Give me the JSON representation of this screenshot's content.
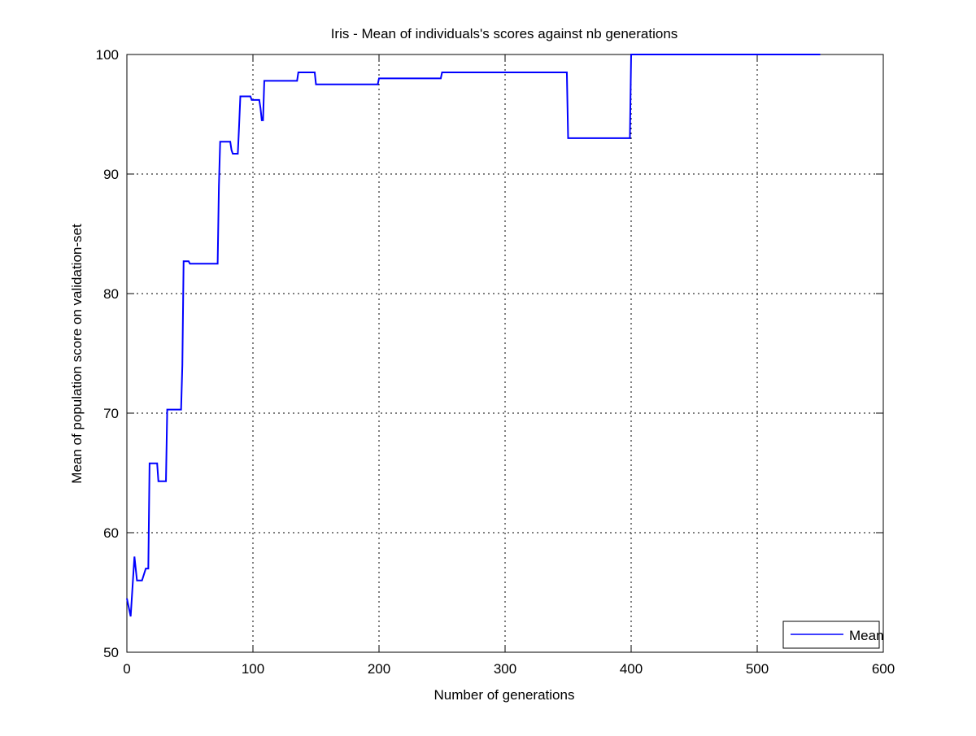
{
  "chart_data": {
    "type": "line",
    "title": "Iris - Mean of individuals's scores against nb generations",
    "xlabel": "Number of generations",
    "ylabel": "Mean of population score on validation-set",
    "xlim": [
      0,
      600
    ],
    "ylim": [
      50,
      100
    ],
    "xticks": [
      0,
      100,
      200,
      300,
      400,
      500,
      600
    ],
    "yticks": [
      50,
      60,
      70,
      80,
      90,
      100
    ],
    "xtick_labels": [
      "0",
      "100",
      "200",
      "300",
      "400",
      "500",
      "600"
    ],
    "ytick_labels": [
      "50",
      "60",
      "70",
      "80",
      "90",
      "100"
    ],
    "grid": true,
    "legend_position": "bottom-right",
    "series": [
      {
        "name": "Mean",
        "color": "#0000ff",
        "x": [
          0,
          3,
          6,
          8,
          12,
          15,
          16,
          17,
          18,
          24,
          25,
          31,
          32,
          33,
          43,
          44,
          45,
          49,
          50,
          51,
          72,
          73,
          74,
          75,
          82,
          83,
          84,
          85,
          88,
          89,
          90,
          92,
          93,
          98,
          99,
          105,
          106,
          107,
          108,
          109,
          110,
          135,
          136,
          149,
          150,
          151,
          199,
          200,
          201,
          249,
          250,
          251,
          349,
          350,
          351,
          399,
          400,
          401,
          550
        ],
        "y": [
          54.5,
          53.0,
          58.0,
          56.0,
          56.0,
          57.0,
          57.0,
          57.0,
          65.8,
          65.8,
          64.3,
          64.3,
          70.3,
          70.3,
          70.3,
          74.0,
          82.7,
          82.7,
          82.5,
          82.5,
          82.5,
          89.0,
          92.7,
          92.7,
          92.7,
          92.0,
          91.7,
          91.7,
          91.7,
          94.0,
          96.5,
          96.5,
          96.5,
          96.5,
          96.2,
          96.2,
          95.5,
          94.5,
          94.5,
          97.8,
          97.8,
          97.8,
          98.5,
          98.5,
          97.5,
          97.5,
          97.5,
          98.0,
          98.0,
          98.0,
          98.5,
          98.5,
          98.5,
          93.0,
          93.0,
          93.0,
          100.0,
          100.0,
          100.0
        ]
      }
    ]
  }
}
